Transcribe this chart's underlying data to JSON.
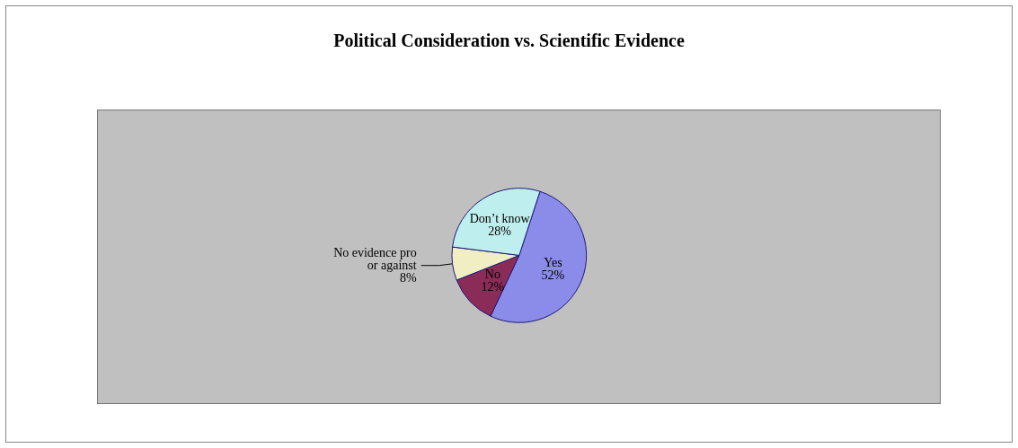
{
  "chart_data": {
    "type": "pie",
    "title": "Political Consideration vs. Scientific Evidence",
    "categories": [
      "Yes",
      "No",
      "No evidence pro or against",
      "Don’t know"
    ],
    "values": [
      52,
      12,
      8,
      28
    ],
    "value_labels": [
      "52%",
      "12%",
      "8%",
      "28%"
    ],
    "colors": [
      "#8b8bea",
      "#8b2c58",
      "#f0eec2",
      "#bfeeee"
    ],
    "legend": false
  }
}
